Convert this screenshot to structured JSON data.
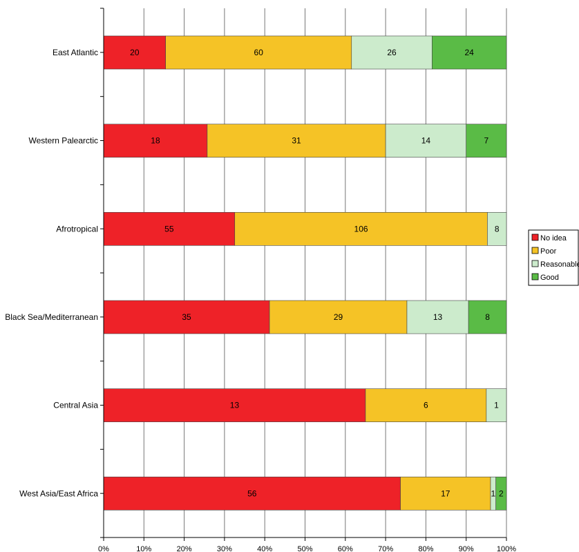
{
  "chart_data": {
    "type": "bar",
    "orientation": "horizontal",
    "stacked": "percent",
    "categories": [
      "East Atlantic",
      "Western Palearctic",
      "Afrotropical",
      "Black Sea/Mediterranean",
      "Central Asia",
      "West Asia/East Africa"
    ],
    "series": [
      {
        "name": "No idea",
        "color": "#ee2228",
        "values": [
          20,
          18,
          55,
          35,
          13,
          56
        ]
      },
      {
        "name": "Poor",
        "color": "#f5c326",
        "values": [
          60,
          31,
          106,
          29,
          6,
          17
        ]
      },
      {
        "name": "Reasonable",
        "color": "#ccebcc",
        "values": [
          26,
          14,
          8,
          13,
          1,
          1
        ]
      },
      {
        "name": "Good",
        "color": "#5abb46",
        "values": [
          24,
          7,
          0,
          8,
          0,
          2
        ]
      }
    ],
    "xticks": [
      "0%",
      "10%",
      "20%",
      "30%",
      "40%",
      "50%",
      "60%",
      "70%",
      "80%",
      "90%",
      "100%"
    ],
    "xlim": [
      0,
      100
    ],
    "grid": "vertical",
    "legend_position": "right",
    "title": "",
    "xlabel": "",
    "ylabel": ""
  }
}
